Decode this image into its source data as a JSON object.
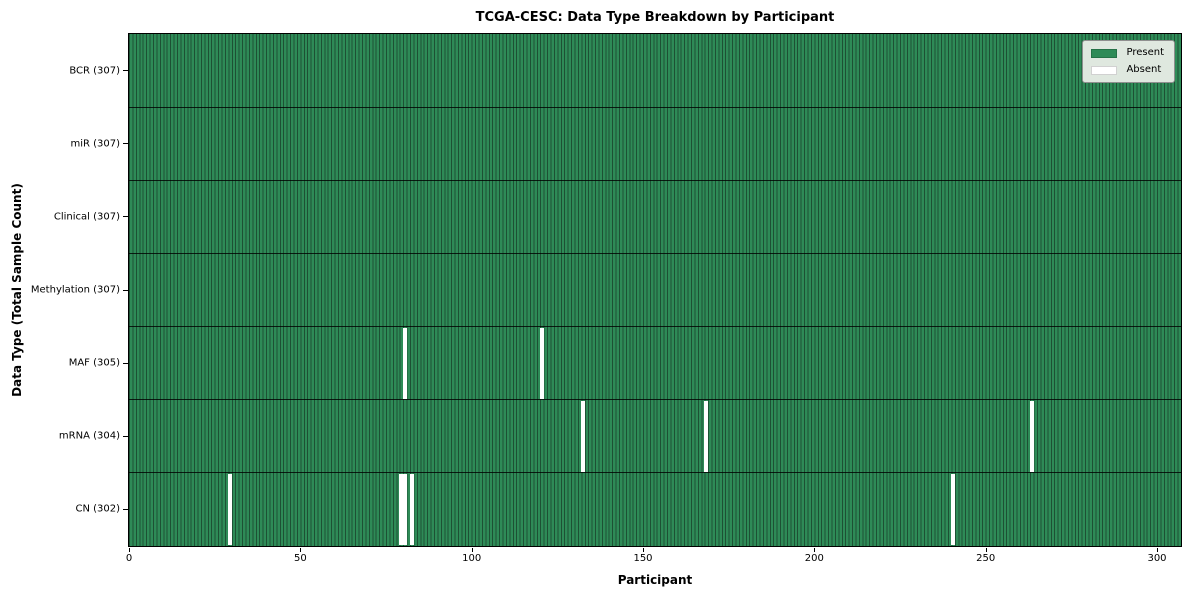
{
  "chart_data": {
    "type": "heatmap",
    "title": "TCGA-CESC: Data Type Breakdown by Participant",
    "xlabel": "Participant",
    "ylabel": "Data Type (Total Sample Count)",
    "x_ticks": [
      0,
      50,
      100,
      150,
      200,
      250,
      300
    ],
    "x_range": [
      0,
      307
    ],
    "total_participants": 307,
    "grid": "cell-edges-on",
    "legend_position": "upper right",
    "rows": [
      {
        "name": "BCR",
        "label": "BCR (307)",
        "present_count": 307,
        "absent_participants": []
      },
      {
        "name": "miR",
        "label": "miR (307)",
        "present_count": 307,
        "absent_participants": []
      },
      {
        "name": "Clinical",
        "label": "Clinical (307)",
        "present_count": 307,
        "absent_participants": []
      },
      {
        "name": "Methylation",
        "label": "Methylation (307)",
        "present_count": 307,
        "absent_participants": []
      },
      {
        "name": "MAF",
        "label": "MAF (305)",
        "present_count": 305,
        "absent_participants": [
          80,
          120
        ]
      },
      {
        "name": "mRNA",
        "label": "mRNA (304)",
        "present_count": 304,
        "absent_participants": [
          132,
          168,
          263
        ]
      },
      {
        "name": "CN",
        "label": "CN (302)",
        "present_count": 302,
        "absent_participants": [
          29,
          79,
          80,
          82,
          240
        ]
      }
    ],
    "legend": [
      {
        "label": "Present",
        "color": "#2e8b57"
      },
      {
        "label": "Absent",
        "color": "#ffffff"
      }
    ],
    "colors": {
      "present": "#2e8b57",
      "cell_edge": "#1d5134",
      "absent": "#ffffff",
      "legend_bg": "#dfe8df",
      "legend_border": "#8f8f8f",
      "axis": "#000000"
    }
  }
}
